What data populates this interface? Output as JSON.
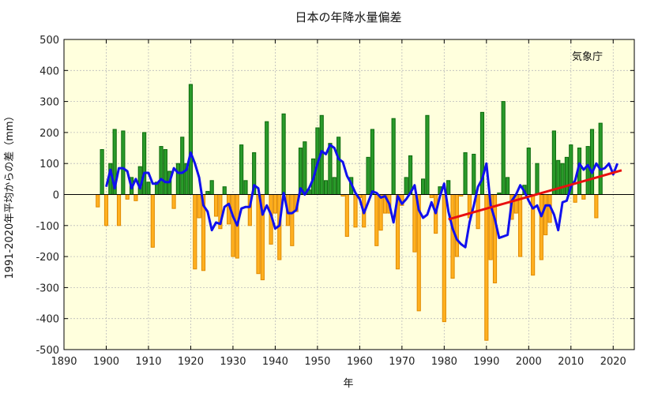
{
  "chart_data": {
    "type": "bar",
    "title": "日本の年降水量偏差",
    "xlabel": "年",
    "ylabel": "1991-2020年平均からの差（mm）",
    "source": "気象庁",
    "xlim": [
      1890,
      2025
    ],
    "ylim": [
      -500,
      500
    ],
    "x_ticks": [
      1890,
      1900,
      1910,
      1920,
      1930,
      1940,
      1950,
      1960,
      1970,
      1980,
      1990,
      2000,
      2010,
      2020
    ],
    "y_ticks": [
      500,
      400,
      300,
      200,
      100,
      0,
      -100,
      -200,
      -300,
      -400,
      -500
    ],
    "grid": true,
    "colors": {
      "background": "#ffffdd",
      "positive_bar": "#2a9a2a",
      "positive_edge": "#0c6a0c",
      "negative_bar": "#ffb020",
      "negative_edge": "#e08a00",
      "moving_average": "#1010ee",
      "trend": "#e81010",
      "grid": "#bbbbbb"
    },
    "series": [
      {
        "kind": "annual_anomaly_bars",
        "start_year": 1898,
        "values": [
          -40,
          145,
          -100,
          100,
          210,
          -100,
          205,
          -15,
          55,
          -20,
          90,
          200,
          40,
          -170,
          40,
          155,
          145,
          75,
          -45,
          100,
          185,
          100,
          355,
          -240,
          -75,
          -245,
          10,
          45,
          -70,
          -110,
          25,
          -95,
          -200,
          -205,
          160,
          45,
          -100,
          135,
          -255,
          -275,
          235,
          -160,
          -60,
          -210,
          260,
          -100,
          -165,
          -55,
          150,
          170,
          15,
          115,
          215,
          255,
          45,
          165,
          55,
          185,
          -5,
          -135,
          55,
          -105,
          -10,
          -105,
          120,
          210,
          -165,
          -115,
          -60,
          -60,
          245,
          -240,
          -35,
          55,
          125,
          -185,
          -375,
          50,
          255,
          -10,
          -125,
          25,
          -410,
          45,
          -270,
          -200,
          -5,
          135,
          -75,
          130,
          -110,
          265,
          -470,
          -210,
          -285,
          5,
          300,
          55,
          -80,
          -60,
          -200,
          30,
          150,
          -260,
          100,
          -210,
          -130,
          -90,
          205,
          110,
          100,
          120,
          160,
          -25,
          150,
          -15,
          155,
          210,
          -75,
          230
        ]
      },
      {
        "kind": "five_year_running_mean",
        "start_year": 1900,
        "values": [
          25,
          80,
          20,
          85,
          85,
          75,
          20,
          50,
          20,
          70,
          70,
          35,
          35,
          50,
          40,
          40,
          85,
          70,
          70,
          80,
          135,
          100,
          55,
          -35,
          -55,
          -115,
          -90,
          -95,
          -40,
          -30,
          -70,
          -100,
          -45,
          -40,
          -40,
          30,
          20,
          -65,
          -35,
          -65,
          -110,
          -100,
          5,
          -60,
          -60,
          -50,
          20,
          0,
          20,
          50,
          100,
          140,
          130,
          160,
          150,
          115,
          105,
          60,
          35,
          5,
          -15,
          -60,
          -25,
          10,
          5,
          -10,
          -5,
          -30,
          -90,
          -5,
          -30,
          -15,
          5,
          30,
          -50,
          -75,
          -65,
          -25,
          -60,
          -5,
          35,
          -55,
          -110,
          -145,
          -160,
          -170,
          -90,
          -35,
          25,
          50,
          100,
          -35,
          -80,
          -140,
          -135,
          -130,
          -20,
          0,
          30,
          10,
          -20,
          -45,
          -35,
          -70,
          -35,
          -35,
          -65,
          -115,
          -25,
          -20,
          25,
          45,
          100,
          80,
          95,
          70,
          100,
          80,
          85,
          100,
          65,
          100
        ]
      },
      {
        "kind": "linear_trend",
        "x": [
          1981,
          2022
        ],
        "values": [
          -80,
          78
        ]
      }
    ]
  }
}
